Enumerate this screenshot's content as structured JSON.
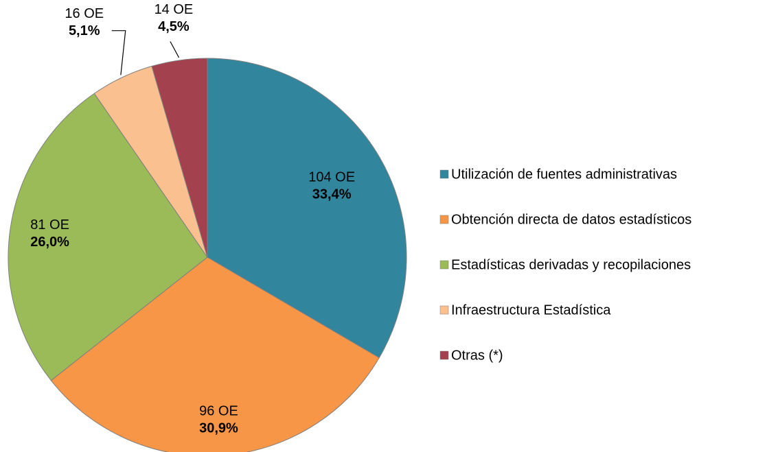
{
  "chart_data": {
    "type": "pie",
    "categories": [
      "Utilización de fuentes administrativas",
      "Obtención directa de datos estadísticos",
      "Estadísticas derivadas y recopilaciones",
      "Infraestructura Estadística",
      "Otras (*)"
    ],
    "values": [
      33.4,
      30.9,
      26.0,
      5.1,
      4.5
    ],
    "value_labels": [
      "33,4%",
      "30,9%",
      "26,0%",
      "5,1%",
      "4,5%"
    ],
    "count_labels": [
      "104 OE",
      "96 OE",
      "81 OE",
      "16 OE",
      "14 OE"
    ],
    "colors": [
      "#31859c",
      "#f79646",
      "#9bbb59",
      "#fac090",
      "#a4414f"
    ],
    "legend": "right"
  }
}
